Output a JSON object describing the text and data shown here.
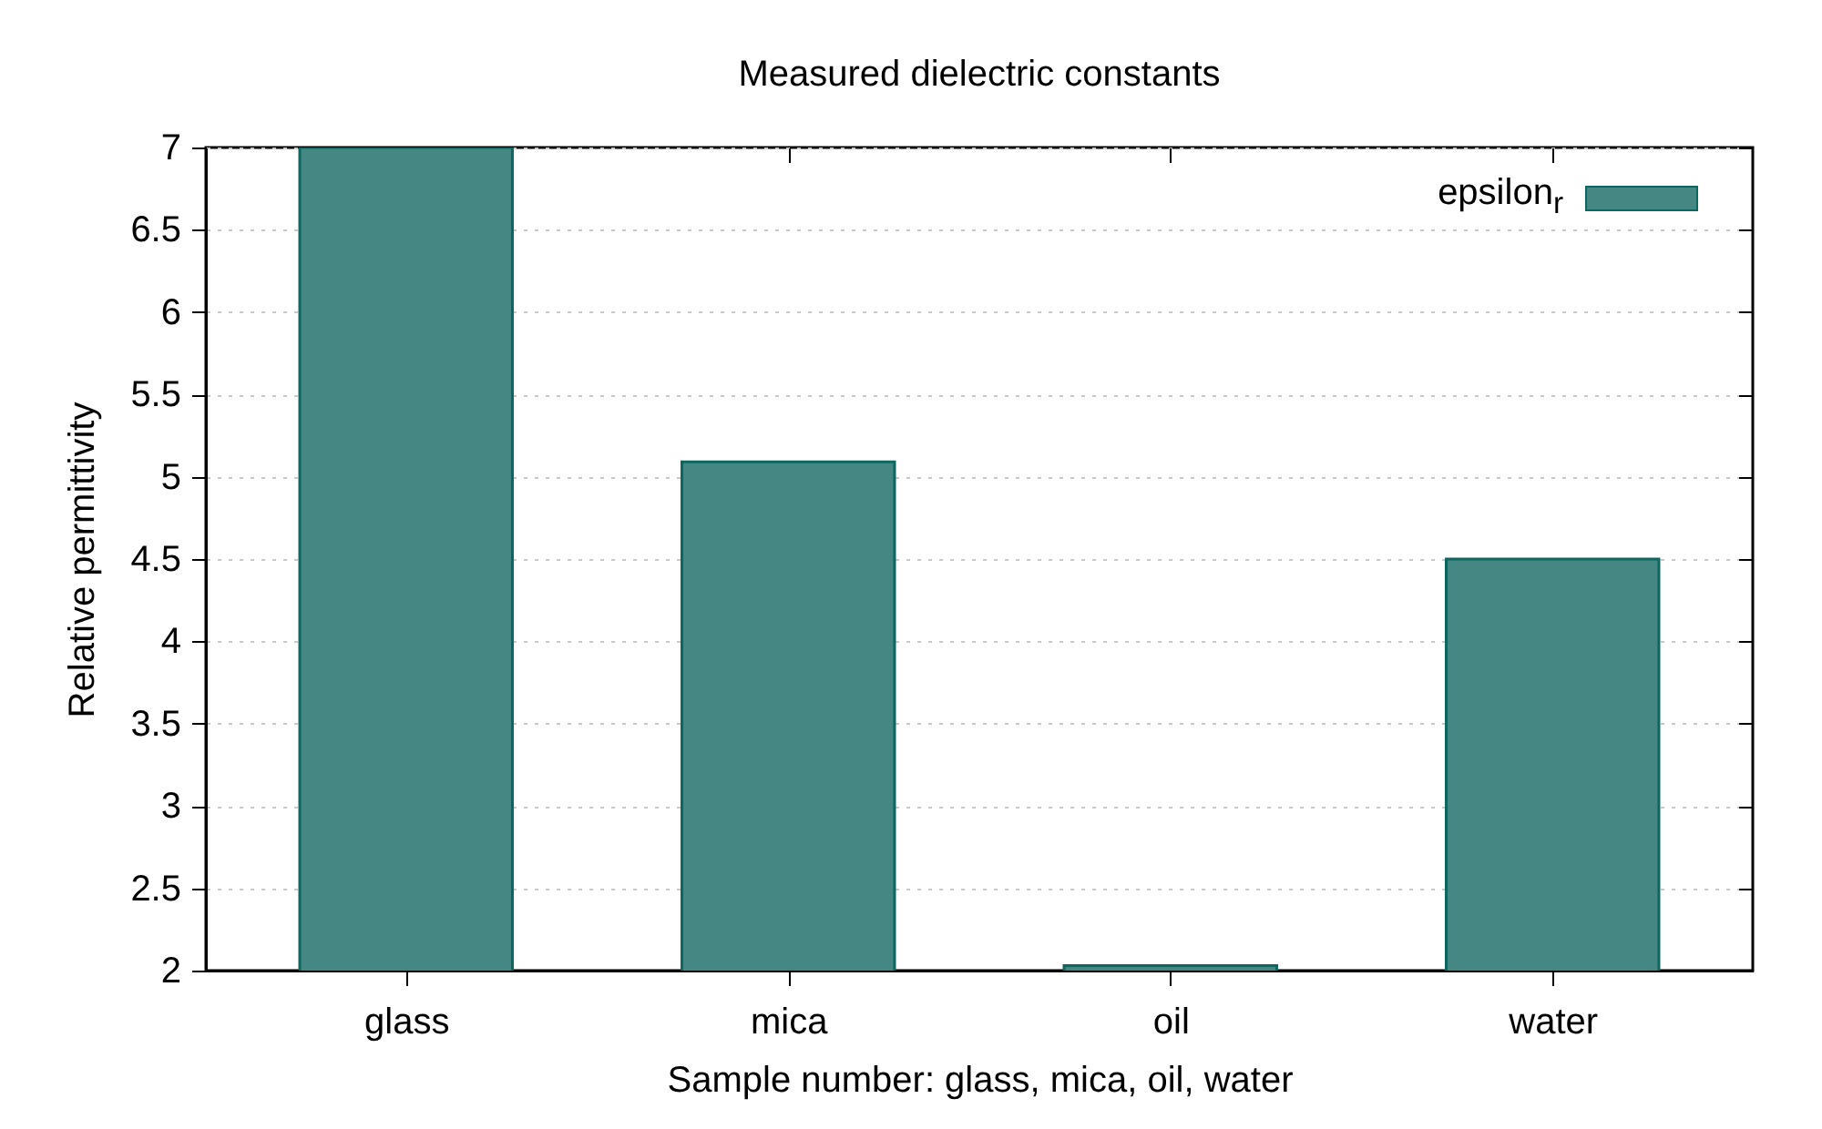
{
  "chart_data": {
    "type": "bar",
    "title": "Measured dielectric constants",
    "xlabel": "Sample number: glass, mica, oil, water",
    "ylabel": "Relative permittivity",
    "categories": [
      "glass",
      "mica",
      "oil",
      "water"
    ],
    "series": [
      {
        "name": "epsilon$_{r}$",
        "color": "#458783",
        "values": [
          7,
          5.09,
          2.03,
          4.5
        ]
      }
    ],
    "ylim": [
      2,
      7
    ],
    "yticks": [
      2,
      2.5,
      3,
      3.5,
      4,
      4.5,
      5,
      5.5,
      6,
      6.5,
      7
    ],
    "grid": "y",
    "legend": "top right"
  }
}
